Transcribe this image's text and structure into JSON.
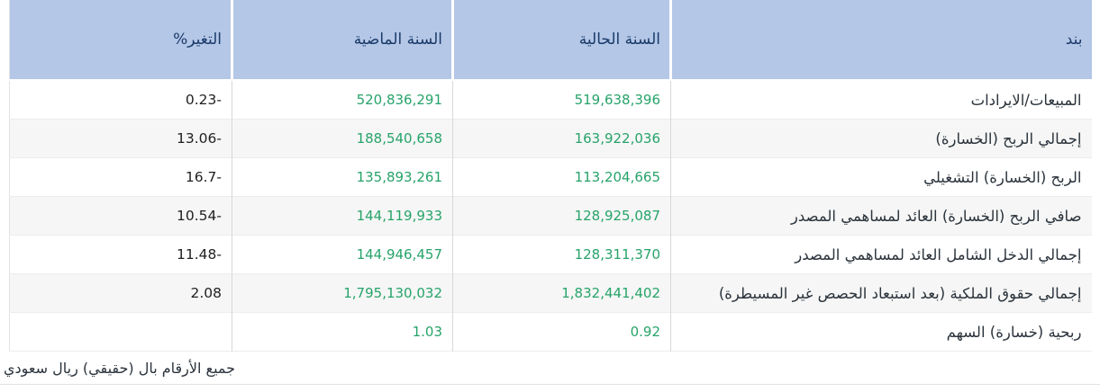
{
  "table": {
    "columns": [
      {
        "key": "item",
        "label": "بند"
      },
      {
        "key": "current_year",
        "label": "السنة الحالية"
      },
      {
        "key": "previous_year",
        "label": "السنة الماضية"
      },
      {
        "key": "change_pct",
        "label": "التغير%"
      }
    ],
    "rows": [
      {
        "item": "المبيعات/الايرادات",
        "current_year": "519,638,396",
        "previous_year": "520,836,291",
        "change_pct": "-0.23"
      },
      {
        "item": "إجمالي الربح (الخسارة)",
        "current_year": "163,922,036",
        "previous_year": "188,540,658",
        "change_pct": "-13.06"
      },
      {
        "item": "الربح (الخسارة) التشغيلي",
        "current_year": "113,204,665",
        "previous_year": "135,893,261",
        "change_pct": "-16.7"
      },
      {
        "item": "صافي الربح (الخسارة) العائد لمساهمي المصدر",
        "current_year": "128,925,087",
        "previous_year": "144,119,933",
        "change_pct": "-10.54"
      },
      {
        "item": "إجمالي الدخل الشامل العائد لمساهمي المصدر",
        "current_year": "128,311,370",
        "previous_year": "144,946,457",
        "change_pct": "-11.48"
      },
      {
        "item": "إجمالي حقوق الملكية (بعد استبعاد الحصص غير المسيطرة)",
        "current_year": "1,832,441,402",
        "previous_year": "1,795,130,032",
        "change_pct": "2.08"
      },
      {
        "item": "ربحية (خسارة) السهم",
        "current_year": "0.92",
        "previous_year": "1.03",
        "change_pct": ""
      }
    ]
  },
  "footnote": "جميع الأرقام بال (حقيقي) ريال سعودي",
  "colors": {
    "header_bg": "#b4c7e7",
    "header_text": "#1a3a68",
    "positive_green": "#27a36a",
    "change_text": "#1f1f1f",
    "item_text": "#2b333c",
    "stripe_bg": "#f5f6f5",
    "v_separator": "#d8d8d8",
    "h_separator": "#ececec",
    "outer_border": "#e2e2e2"
  }
}
